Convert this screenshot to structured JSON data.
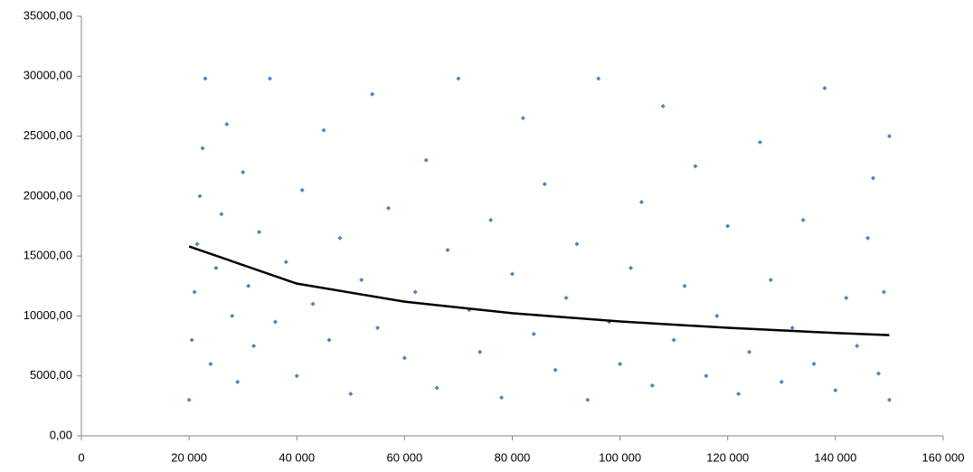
{
  "chart_data": {
    "type": "scatter",
    "xlim": [
      0,
      160000
    ],
    "xticks": [
      0,
      {
        "value": 20000,
        "label": "20 000"
      },
      {
        "value": 40000,
        "label": "40 000"
      },
      {
        "value": 60000,
        "label": "60 000"
      },
      {
        "value": 80000,
        "label": "80 000"
      },
      {
        "value": 100000,
        "label": "100 000"
      },
      {
        "value": 120000,
        "label": "120 000"
      },
      {
        "value": 140000,
        "label": "140 000"
      },
      {
        "value": 160000,
        "label": "160 000"
      }
    ],
    "ylim": [
      0,
      35000
    ],
    "yticks": [
      {
        "value": 0,
        "label": "0,00"
      },
      {
        "value": 5000,
        "label": "5000,00"
      },
      {
        "value": 10000,
        "label": "10000,00"
      },
      {
        "value": 15000,
        "label": "15000,00"
      },
      {
        "value": 20000,
        "label": "20000,00"
      },
      {
        "value": 25000,
        "label": "25000,00"
      },
      {
        "value": 30000,
        "label": "30000,00"
      },
      {
        "value": 35000,
        "label": "35000,00"
      }
    ],
    "grid": false,
    "series": [
      {
        "mode": "markers",
        "color": "#4f81bd",
        "x": [
          20000,
          20500,
          21000,
          21500,
          22000,
          22500,
          23000,
          24000,
          25000,
          26000,
          27000,
          28000,
          29000,
          30000,
          31000,
          32000,
          33000,
          35000,
          36000,
          38000,
          40000,
          41000,
          43000,
          45000,
          46000,
          48000,
          50000,
          52000,
          54000,
          55000,
          57000,
          60000,
          62000,
          64000,
          66000,
          68000,
          70000,
          72000,
          74000,
          76000,
          78000,
          80000,
          82000,
          84000,
          86000,
          88000,
          90000,
          92000,
          94000,
          96000,
          98000,
          100000,
          102000,
          104000,
          106000,
          108000,
          110000,
          112000,
          114000,
          116000,
          118000,
          120000,
          122000,
          124000,
          126000,
          128000,
          130000,
          132000,
          134000,
          136000,
          138000,
          140000,
          142000,
          144000,
          146000,
          148000,
          150000,
          150000,
          149000,
          147000
        ],
        "values": [
          3000,
          8000,
          12000,
          16000,
          20000,
          24000,
          29800,
          6000,
          14000,
          18500,
          26000,
          10000,
          4500,
          22000,
          12500,
          7500,
          17000,
          29800,
          9500,
          14500,
          5000,
          20500,
          11000,
          25500,
          8000,
          16500,
          3500,
          13000,
          28500,
          9000,
          19000,
          6500,
          12000,
          23000,
          4000,
          15500,
          29800,
          10500,
          7000,
          18000,
          3200,
          13500,
          26500,
          8500,
          21000,
          5500,
          11500,
          16000,
          3000,
          29800,
          9500,
          6000,
          14000,
          19500,
          4200,
          27500,
          8000,
          12500,
          22500,
          5000,
          10000,
          17500,
          3500,
          7000,
          24500,
          13000,
          4500,
          9000,
          18000,
          6000,
          29000,
          3800,
          11500,
          7500,
          16500,
          5200,
          3000,
          25000,
          12000,
          21500
        ]
      },
      {
        "mode": "line",
        "color": "#000000",
        "x": [
          20000,
          40000,
          60000,
          80000,
          100000,
          120000,
          140000,
          150000
        ],
        "values": [
          15800,
          12700,
          11190,
          10230,
          9540,
          9010,
          8580,
          8400
        ]
      }
    ]
  }
}
